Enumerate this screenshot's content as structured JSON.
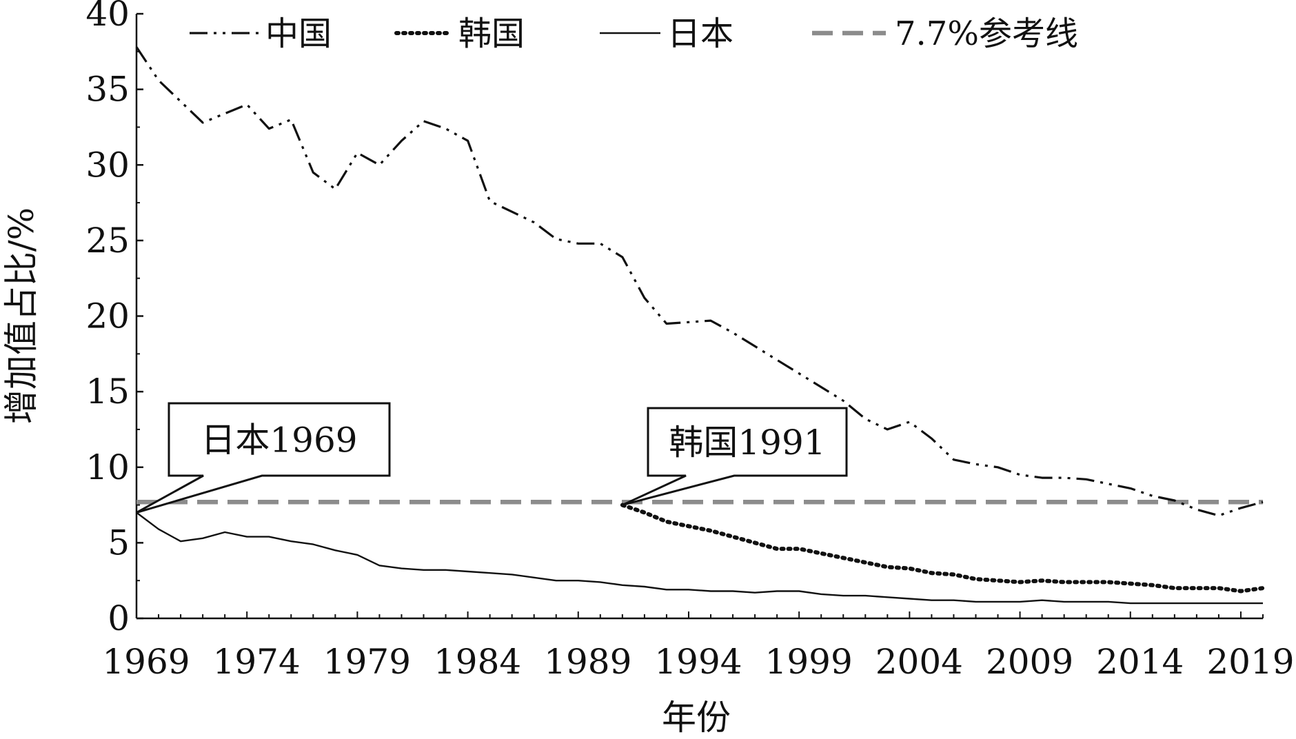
{
  "chart_data": {
    "type": "line",
    "title": "",
    "xlabel": "年份",
    "ylabel": "增加值占比/%",
    "xlim": [
      1969,
      2020
    ],
    "ylim": [
      0,
      40
    ],
    "x_ticks": [
      1969,
      1974,
      1979,
      1984,
      1989,
      1994,
      1999,
      2004,
      2009,
      2014,
      2019
    ],
    "y_ticks": [
      0,
      5,
      10,
      15,
      20,
      25,
      30,
      35,
      40
    ],
    "grid": false,
    "legend_position": "top",
    "series": [
      {
        "name": "中国",
        "style": "dash-dot-dot",
        "color": "#111111",
        "x": [
          1969,
          1970,
          1971,
          1972,
          1973,
          1974,
          1975,
          1976,
          1977,
          1978,
          1979,
          1980,
          1981,
          1982,
          1983,
          1984,
          1985,
          1986,
          1987,
          1988,
          1989,
          1990,
          1991,
          1992,
          1993,
          1994,
          1995,
          1996,
          1997,
          1998,
          1999,
          2000,
          2001,
          2002,
          2003,
          2004,
          2005,
          2006,
          2007,
          2008,
          2009,
          2010,
          2011,
          2012,
          2013,
          2014,
          2015,
          2016,
          2017,
          2018,
          2019,
          2020
        ],
        "y": [
          37.8,
          35.6,
          34.2,
          32.8,
          33.4,
          34.0,
          32.4,
          33.0,
          29.5,
          28.4,
          30.8,
          30.0,
          31.6,
          32.9,
          32.4,
          31.6,
          27.6,
          26.9,
          26.2,
          25.1,
          24.8,
          24.8,
          23.9,
          21.2,
          19.5,
          19.6,
          19.7,
          18.9,
          18.0,
          17.1,
          16.2,
          15.3,
          14.4,
          13.2,
          12.5,
          13.0,
          11.9,
          10.5,
          10.2,
          10.0,
          9.5,
          9.3,
          9.3,
          9.2,
          8.9,
          8.6,
          8.1,
          7.8,
          7.2,
          6.8,
          7.3,
          7.7
        ]
      },
      {
        "name": "韩国",
        "style": "dotted",
        "color": "#111111",
        "x": [
          1991,
          1992,
          1993,
          1994,
          1995,
          1996,
          1997,
          1998,
          1999,
          2000,
          2001,
          2002,
          2003,
          2004,
          2005,
          2006,
          2007,
          2008,
          2009,
          2010,
          2011,
          2012,
          2013,
          2014,
          2015,
          2016,
          2017,
          2018,
          2019,
          2020
        ],
        "y": [
          7.5,
          7.0,
          6.4,
          6.1,
          5.8,
          5.4,
          5.0,
          4.6,
          4.6,
          4.3,
          4.0,
          3.7,
          3.4,
          3.3,
          3.0,
          2.9,
          2.6,
          2.5,
          2.4,
          2.5,
          2.4,
          2.4,
          2.4,
          2.3,
          2.2,
          2.0,
          2.0,
          2.0,
          1.8,
          2.0
        ]
      },
      {
        "name": "日本",
        "style": "solid",
        "color": "#111111",
        "x": [
          1969,
          1970,
          1971,
          1972,
          1973,
          1974,
          1975,
          1976,
          1977,
          1978,
          1979,
          1980,
          1981,
          1982,
          1983,
          1984,
          1985,
          1986,
          1987,
          1988,
          1989,
          1990,
          1991,
          1992,
          1993,
          1994,
          1995,
          1996,
          1997,
          1998,
          1999,
          2000,
          2001,
          2002,
          2003,
          2004,
          2005,
          2006,
          2007,
          2008,
          2009,
          2010,
          2011,
          2012,
          2013,
          2014,
          2015,
          2016,
          2017,
          2018,
          2019,
          2020
        ],
        "y": [
          7.0,
          5.9,
          5.1,
          5.3,
          5.7,
          5.4,
          5.4,
          5.1,
          4.9,
          4.5,
          4.2,
          3.5,
          3.3,
          3.2,
          3.2,
          3.1,
          3.0,
          2.9,
          2.7,
          2.5,
          2.5,
          2.4,
          2.2,
          2.1,
          1.9,
          1.9,
          1.8,
          1.8,
          1.7,
          1.8,
          1.8,
          1.6,
          1.5,
          1.5,
          1.4,
          1.3,
          1.2,
          1.2,
          1.1,
          1.1,
          1.1,
          1.2,
          1.1,
          1.1,
          1.1,
          1.0,
          1.0,
          1.0,
          1.0,
          1.0,
          1.0,
          1.0
        ]
      },
      {
        "name": "7.7%参考线",
        "style": "dashed",
        "color": "#8c8c8c",
        "x": [
          1969,
          2020
        ],
        "y": [
          7.7,
          7.7
        ]
      }
    ],
    "annotations": [
      {
        "text": "日本1969",
        "x": 1969,
        "y": 7.0
      },
      {
        "text": "韩国1991",
        "x": 1991,
        "y": 7.5
      }
    ]
  }
}
